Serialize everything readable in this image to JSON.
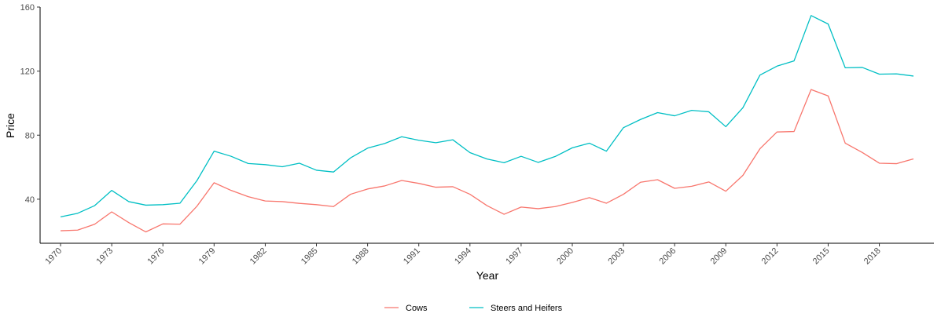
{
  "chart_data": {
    "type": "line",
    "xlabel": "Year",
    "ylabel": "Price",
    "xlim": [
      1968.8,
      2021.2
    ],
    "ylim": [
      12.5,
      160
    ],
    "x_ticks": [
      1970,
      1973,
      1976,
      1979,
      1982,
      1985,
      1988,
      1991,
      1994,
      1997,
      2000,
      2003,
      2006,
      2009,
      2012,
      2015,
      2018
    ],
    "y_ticks": [
      40,
      80,
      120,
      160
    ],
    "grid": false,
    "legend_position": "bottom",
    "x": [
      1970,
      1971,
      1972,
      1973,
      1974,
      1975,
      1976,
      1977,
      1978,
      1979,
      1980,
      1981,
      1982,
      1983,
      1984,
      1985,
      1986,
      1987,
      1988,
      1989,
      1990,
      1991,
      1992,
      1993,
      1994,
      1995,
      1996,
      1997,
      1998,
      1999,
      2000,
      2001,
      2002,
      2003,
      2004,
      2005,
      2006,
      2007,
      2008,
      2009,
      2010,
      2011,
      2012,
      2013,
      2014,
      2015,
      2016,
      2017,
      2018,
      2019,
      2020
    ],
    "series": [
      {
        "name": "Cows",
        "color": "#F8766D",
        "values": [
          20.3,
          20.7,
          24.4,
          32.1,
          25.4,
          19.6,
          24.6,
          24.4,
          35.7,
          50.3,
          45.5,
          41.6,
          38.9,
          38.5,
          37.4,
          36.6,
          35.4,
          43.1,
          46.4,
          48.3,
          51.7,
          49.9,
          47.5,
          47.8,
          43.1,
          36.0,
          30.6,
          35.1,
          34.1,
          35.4,
          38.0,
          41.0,
          37.5,
          43.1,
          50.6,
          52.2,
          46.8,
          48.1,
          50.8,
          45.0,
          54.9,
          71.5,
          82.0,
          82.3,
          108.5,
          104.5,
          75.0,
          69.2,
          62.5,
          62.2,
          65.2
        ]
      },
      {
        "name": "Steers and Heifers",
        "color": "#00BFC4",
        "values": [
          29.0,
          31.2,
          36.0,
          45.5,
          38.5,
          36.3,
          36.6,
          37.5,
          51.7,
          70.0,
          66.8,
          62.3,
          61.6,
          60.3,
          62.5,
          58.1,
          57.0,
          65.8,
          71.9,
          74.8,
          79.0,
          76.8,
          75.3,
          77.1,
          69.1,
          65.1,
          62.8,
          66.8,
          63.0,
          66.7,
          72.1,
          75.0,
          70.0,
          84.7,
          89.8,
          94.1,
          92.1,
          95.5,
          94.6,
          85.3,
          97.1,
          117.5,
          123.1,
          126.4,
          154.7,
          149.4,
          122.1,
          122.3,
          118.1,
          118.3,
          116.9
        ]
      }
    ]
  }
}
